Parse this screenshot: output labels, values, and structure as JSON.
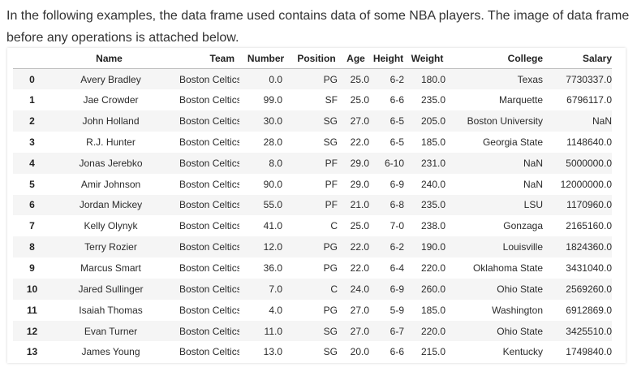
{
  "intro": {
    "text": "In the following examples, the data frame used contains data of some NBA players. The image of data frame before any operations is attached below."
  },
  "table": {
    "columns": [
      "Name",
      "Team",
      "Number",
      "Position",
      "Age",
      "Height",
      "Weight",
      "College",
      "Salary"
    ],
    "rows": [
      {
        "index": "0",
        "cells": [
          "Avery Bradley",
          "Boston Celtics",
          "0.0",
          "PG",
          "25.0",
          "6-2",
          "180.0",
          "Texas",
          "7730337.0"
        ]
      },
      {
        "index": "1",
        "cells": [
          "Jae Crowder",
          "Boston Celtics",
          "99.0",
          "SF",
          "25.0",
          "6-6",
          "235.0",
          "Marquette",
          "6796117.0"
        ]
      },
      {
        "index": "2",
        "cells": [
          "John Holland",
          "Boston Celtics",
          "30.0",
          "SG",
          "27.0",
          "6-5",
          "205.0",
          "Boston University",
          "NaN"
        ]
      },
      {
        "index": "3",
        "cells": [
          "R.J. Hunter",
          "Boston Celtics",
          "28.0",
          "SG",
          "22.0",
          "6-5",
          "185.0",
          "Georgia State",
          "1148640.0"
        ]
      },
      {
        "index": "4",
        "cells": [
          "Jonas Jerebko",
          "Boston Celtics",
          "8.0",
          "PF",
          "29.0",
          "6-10",
          "231.0",
          "NaN",
          "5000000.0"
        ]
      },
      {
        "index": "5",
        "cells": [
          "Amir Johnson",
          "Boston Celtics",
          "90.0",
          "PF",
          "29.0",
          "6-9",
          "240.0",
          "NaN",
          "12000000.0"
        ]
      },
      {
        "index": "6",
        "cells": [
          "Jordan Mickey",
          "Boston Celtics",
          "55.0",
          "PF",
          "21.0",
          "6-8",
          "235.0",
          "LSU",
          "1170960.0"
        ]
      },
      {
        "index": "7",
        "cells": [
          "Kelly Olynyk",
          "Boston Celtics",
          "41.0",
          "C",
          "25.0",
          "7-0",
          "238.0",
          "Gonzaga",
          "2165160.0"
        ]
      },
      {
        "index": "8",
        "cells": [
          "Terry Rozier",
          "Boston Celtics",
          "12.0",
          "PG",
          "22.0",
          "6-2",
          "190.0",
          "Louisville",
          "1824360.0"
        ]
      },
      {
        "index": "9",
        "cells": [
          "Marcus Smart",
          "Boston Celtics",
          "36.0",
          "PG",
          "22.0",
          "6-4",
          "220.0",
          "Oklahoma State",
          "3431040.0"
        ]
      },
      {
        "index": "10",
        "cells": [
          "Jared Sullinger",
          "Boston Celtics",
          "7.0",
          "C",
          "24.0",
          "6-9",
          "260.0",
          "Ohio State",
          "2569260.0"
        ]
      },
      {
        "index": "11",
        "cells": [
          "Isaiah Thomas",
          "Boston Celtics",
          "4.0",
          "PG",
          "27.0",
          "5-9",
          "185.0",
          "Washington",
          "6912869.0"
        ]
      },
      {
        "index": "12",
        "cells": [
          "Evan Turner",
          "Boston Celtics",
          "11.0",
          "SG",
          "27.0",
          "6-7",
          "220.0",
          "Ohio State",
          "3425510.0"
        ]
      },
      {
        "index": "13",
        "cells": [
          "James Young",
          "Boston Celtics",
          "13.0",
          "SG",
          "20.0",
          "6-6",
          "215.0",
          "Kentucky",
          "1749840.0"
        ]
      }
    ]
  }
}
